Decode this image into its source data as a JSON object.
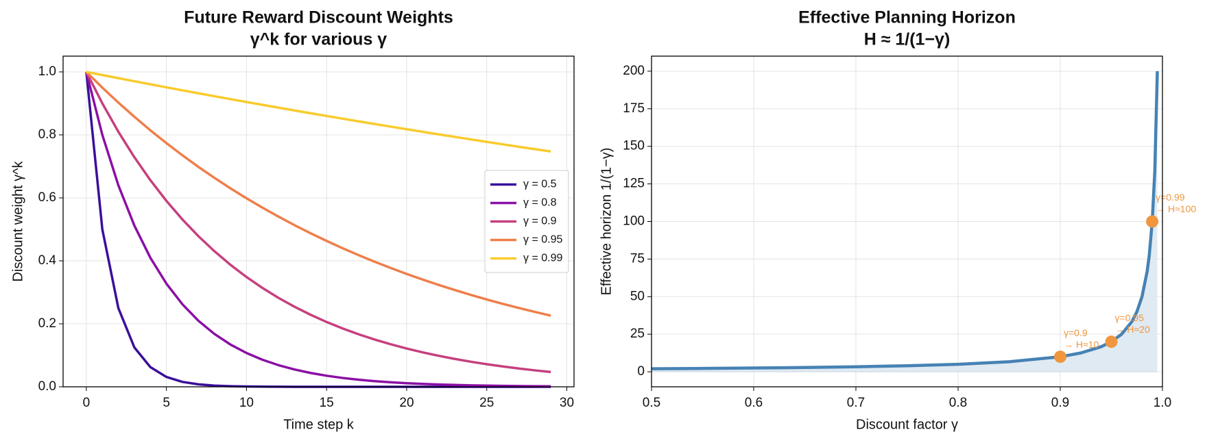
{
  "chart_data": [
    {
      "type": "line",
      "title": "Future Reward Discount Weights",
      "subtitle": "γ^k for various γ",
      "xlabel": "Time step  k",
      "ylabel": "Discount weight  γ^k",
      "x": [
        0,
        1,
        2,
        3,
        4,
        5,
        6,
        7,
        8,
        9,
        10,
        11,
        12,
        13,
        14,
        15,
        16,
        17,
        18,
        19,
        20,
        21,
        22,
        23,
        24,
        25,
        26,
        27,
        28,
        29
      ],
      "series": [
        {
          "name": "γ = 0.5",
          "color": "#3b0f9a",
          "values": [
            1,
            0.5,
            0.25,
            0.125,
            0.0625,
            0.0313,
            0.0156,
            0.0078,
            0.0039,
            0.002,
            0.001,
            0.0005,
            0.0002,
            0.0001,
            0.0001,
            0,
            0,
            0,
            0,
            0,
            0,
            0,
            0,
            0,
            0,
            0,
            0,
            0,
            0,
            0
          ]
        },
        {
          "name": "γ = 0.8",
          "color": "#8b0fa5",
          "values": [
            1,
            0.8,
            0.64,
            0.512,
            0.4096,
            0.3277,
            0.2621,
            0.2097,
            0.1678,
            0.1342,
            0.1074,
            0.0859,
            0.0687,
            0.055,
            0.044,
            0.0352,
            0.0281,
            0.0225,
            0.018,
            0.0144,
            0.0115,
            0.0092,
            0.0074,
            0.0059,
            0.0047,
            0.0038,
            0.003,
            0.0024,
            0.0019,
            0.0015
          ]
        },
        {
          "name": "γ = 0.9",
          "color": "#c5407e",
          "values": [
            1,
            0.9,
            0.81,
            0.729,
            0.6561,
            0.5905,
            0.5314,
            0.4783,
            0.4305,
            0.3874,
            0.3487,
            0.3138,
            0.2824,
            0.2542,
            0.2288,
            0.2059,
            0.1853,
            0.1668,
            0.1501,
            0.1351,
            0.1216,
            0.1094,
            0.0985,
            0.0886,
            0.0798,
            0.0718,
            0.0646,
            0.0581,
            0.0523,
            0.0471
          ]
        },
        {
          "name": "γ = 0.95",
          "color": "#ef7e4a",
          "values": [
            1,
            0.95,
            0.9025,
            0.8574,
            0.8145,
            0.7738,
            0.7351,
            0.6983,
            0.6634,
            0.6302,
            0.5987,
            0.5688,
            0.5404,
            0.5133,
            0.4877,
            0.4633,
            0.4401,
            0.4181,
            0.3972,
            0.3774,
            0.3585,
            0.3406,
            0.3235,
            0.3074,
            0.292,
            0.2774,
            0.2635,
            0.2503,
            0.2378,
            0.2259
          ]
        },
        {
          "name": "γ = 0.99",
          "color": "#f9cb2c",
          "values": [
            1,
            0.99,
            0.9801,
            0.9703,
            0.9606,
            0.951,
            0.9415,
            0.9321,
            0.9227,
            0.9135,
            0.9044,
            0.8953,
            0.8864,
            0.8775,
            0.8687,
            0.86,
            0.8515,
            0.8429,
            0.8345,
            0.8262,
            0.8179,
            0.8097,
            0.8016,
            0.7936,
            0.7857,
            0.7778,
            0.77,
            0.7623,
            0.7547,
            0.7472
          ]
        }
      ],
      "xlim": [
        -1.45,
        30.45
      ],
      "xticks": [
        0,
        5,
        10,
        15,
        20,
        25,
        30
      ],
      "ylim": [
        0,
        1.05
      ],
      "yticks": [
        {
          "value": 0,
          "label": "0.0"
        },
        0.2,
        0.4,
        0.6,
        0.8,
        {
          "value": 1,
          "label": "1.0"
        }
      ],
      "grid": true,
      "legend": "center right"
    },
    {
      "type": "line",
      "title": "Effective Planning Horizon",
      "subtitle": "H ≈ 1/(1−γ)",
      "xlabel": "Discount factor  γ",
      "ylabel": "Effective horizon  1/(1−γ)",
      "x": [
        0.5,
        0.55,
        0.6,
        0.65,
        0.7,
        0.75,
        0.8,
        0.85,
        0.9,
        0.92,
        0.94,
        0.95,
        0.96,
        0.97,
        0.975,
        0.98,
        0.985,
        0.987,
        0.99,
        0.9925,
        0.995
      ],
      "values": [
        2,
        2.222,
        2.5,
        2.857,
        3.333,
        4,
        5,
        6.667,
        10,
        12.5,
        16.667,
        20,
        25,
        33.333,
        40,
        50,
        66.667,
        76.923,
        100,
        133.333,
        200
      ],
      "color": "#4682b4",
      "fill_color": "#dde8f1",
      "markers": {
        "x": [
          0.9,
          0.95,
          0.99
        ],
        "values": [
          10,
          20,
          100
        ],
        "color": "#f0963f",
        "labels": [
          [
            "γ=0.9",
            "→ H≈10"
          ],
          [
            "γ=0.95",
            "→ H≈20"
          ],
          [
            "γ=0.99",
            "→ H≈100"
          ]
        ]
      },
      "xlim": [
        0.5,
        1.0
      ],
      "xticks": [
        0.5,
        0.6,
        0.7,
        0.8,
        0.9,
        {
          "value": 1,
          "label": "1.0"
        }
      ],
      "ylim": [
        -10,
        210
      ],
      "yticks": [
        0,
        25,
        50,
        75,
        100,
        125,
        150,
        175,
        200
      ],
      "grid": true
    }
  ]
}
